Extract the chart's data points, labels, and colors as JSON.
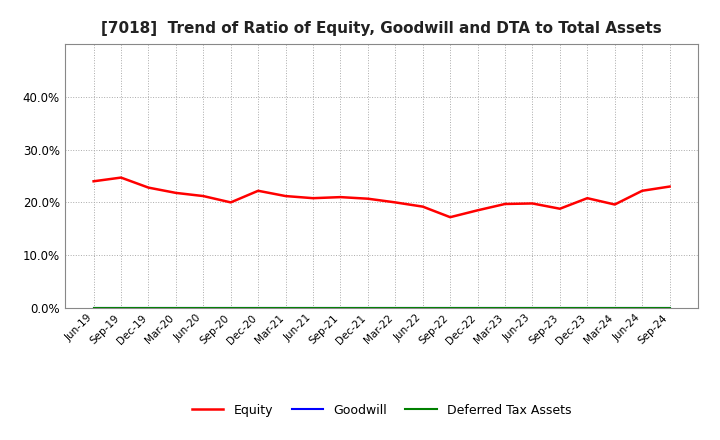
{
  "title": "[7018]  Trend of Ratio of Equity, Goodwill and DTA to Total Assets",
  "x_labels": [
    "Jun-19",
    "Sep-19",
    "Dec-19",
    "Mar-20",
    "Jun-20",
    "Sep-20",
    "Dec-20",
    "Mar-21",
    "Jun-21",
    "Sep-21",
    "Dec-21",
    "Mar-22",
    "Jun-22",
    "Sep-22",
    "Dec-22",
    "Mar-23",
    "Jun-23",
    "Sep-23",
    "Dec-23",
    "Mar-24",
    "Jun-24",
    "Sep-24"
  ],
  "equity": [
    0.24,
    0.247,
    0.228,
    0.218,
    0.212,
    0.2,
    0.222,
    0.212,
    0.208,
    0.21,
    0.207,
    0.2,
    0.192,
    0.172,
    0.185,
    0.197,
    0.198,
    0.188,
    0.208,
    0.196,
    0.222,
    0.23
  ],
  "goodwill": [
    0.0,
    0.0,
    0.0,
    0.0,
    0.0,
    0.0,
    0.0,
    0.0,
    0.0,
    0.0,
    0.0,
    0.0,
    0.0,
    0.0,
    0.0,
    0.0,
    0.0,
    0.0,
    0.0,
    0.0,
    0.0,
    0.0
  ],
  "dta": [
    0.0,
    0.0,
    0.0,
    0.0,
    0.0,
    0.0,
    0.0,
    0.0,
    0.0,
    0.0,
    0.0,
    0.0,
    0.0,
    0.0,
    0.0,
    0.0,
    0.0,
    0.0,
    0.0,
    0.0,
    0.0,
    0.0
  ],
  "equity_color": "#ff0000",
  "goodwill_color": "#0000ff",
  "dta_color": "#008000",
  "ylim": [
    0.0,
    0.5
  ],
  "yticks": [
    0.0,
    0.1,
    0.2,
    0.3,
    0.4
  ],
  "background_color": "#ffffff",
  "grid_color": "#aaaaaa",
  "title_fontsize": 11,
  "legend_labels": [
    "Equity",
    "Goodwill",
    "Deferred Tax Assets"
  ]
}
